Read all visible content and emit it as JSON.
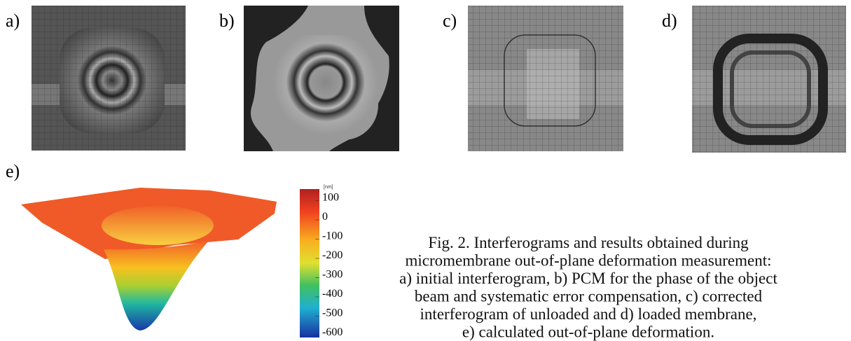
{
  "panels": [
    {
      "label": "a)"
    },
    {
      "label": "b)"
    },
    {
      "label": "c)"
    },
    {
      "label": "d)"
    }
  ],
  "panel_e": {
    "label": "e)"
  },
  "colorbar": {
    "unit": "[nm]",
    "ticks": [
      100,
      0,
      -100,
      -200,
      -300,
      -400,
      -500,
      -600
    ]
  },
  "caption": {
    "lines": [
      "Fig. 2. Interferograms and results obtained during",
      "micromembrane out-of-plane deformation measurement:",
      "a) initial interferogram, b) PCM for the phase of the object",
      "beam and systematic error compensation, c) corrected",
      "interferogram of unloaded and d) loaded membrane,",
      "e) calculated out-of-plane deformation."
    ]
  }
}
